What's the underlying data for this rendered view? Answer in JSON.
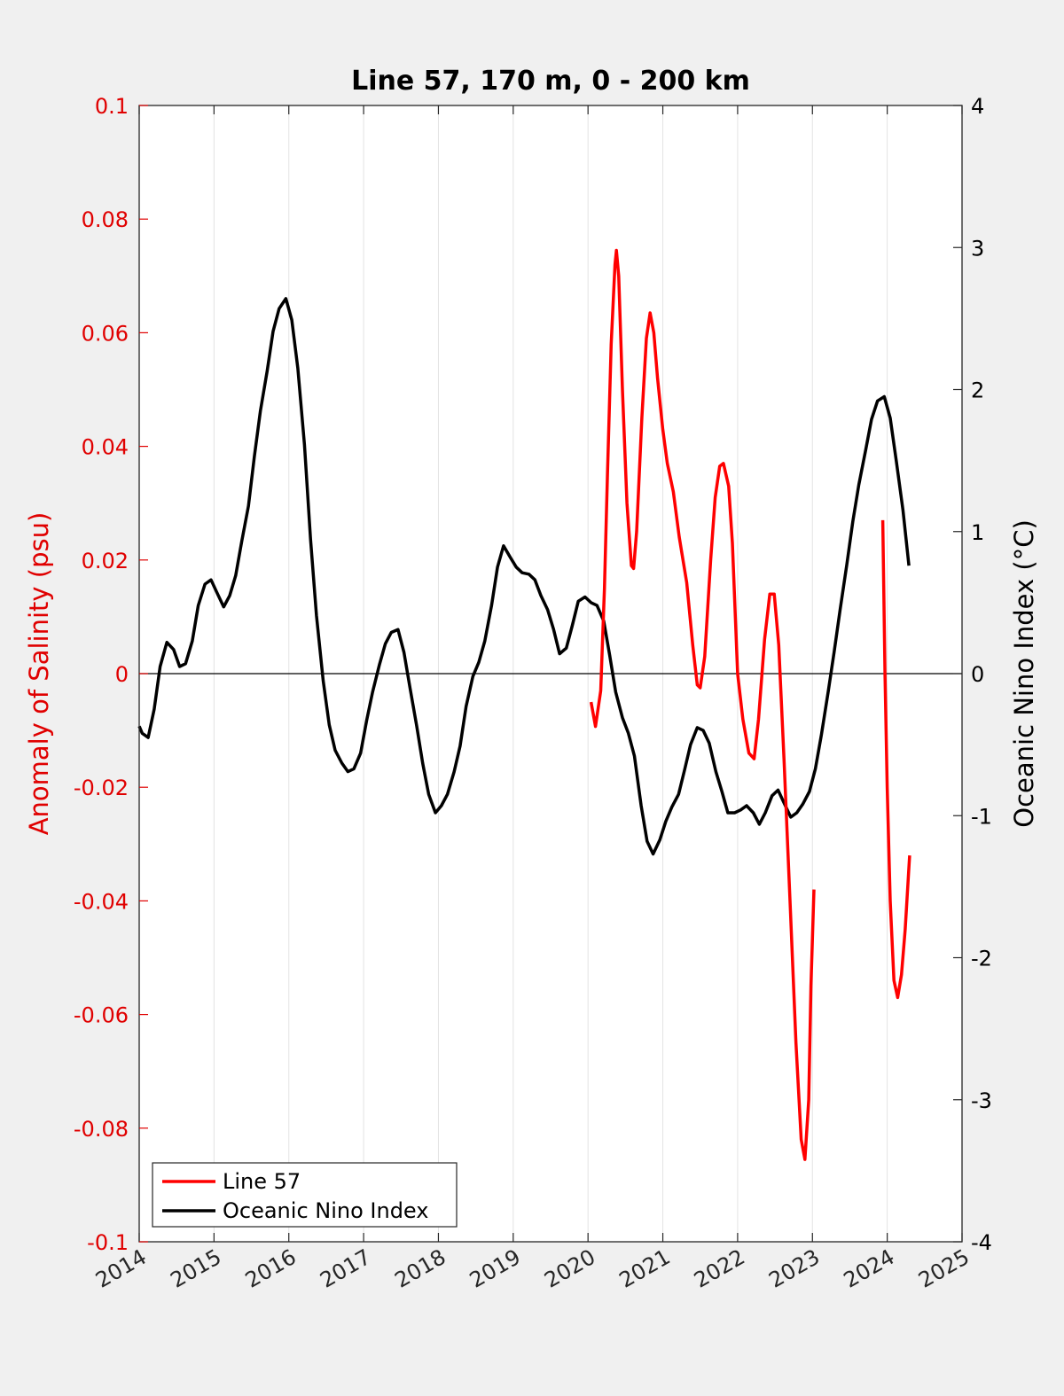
{
  "chart_data": {
    "type": "line",
    "title": "Line 57, 170 m, 0 - 200 km",
    "ylabel_left": "Anomaly of Salinity (psu)",
    "ylabel_right": "Oceanic Nino Index (°C)",
    "xlabel": "",
    "xlim": [
      2014,
      2025
    ],
    "ylim_left": [
      -0.1,
      0.1
    ],
    "ylim_right": [
      -4,
      4
    ],
    "x_ticks": [
      "2014",
      "2015",
      "2016",
      "2017",
      "2018",
      "2019",
      "2020",
      "2021",
      "2022",
      "2023",
      "2024",
      "2025"
    ],
    "y_ticks_left": [
      "0.1",
      "0.08",
      "0.06",
      "0.04",
      "0.02",
      "0",
      "-0.02",
      "-0.04",
      "-0.06",
      "-0.08",
      "-0.1"
    ],
    "y_ticks_right": [
      "4",
      "3",
      "2",
      "1",
      "0",
      "-1",
      "-2",
      "-3",
      "-4"
    ],
    "grid": "vertical",
    "zero_line": true,
    "legend_position": "bottom-left",
    "series": [
      {
        "name": "Line 57",
        "axis": "left",
        "color": "#ff0000",
        "segments": [
          [
            [
              2020.04,
              -0.005
            ],
            [
              2020.1,
              -0.0093
            ],
            [
              2020.17,
              -0.003
            ],
            [
              2020.22,
              0.015
            ],
            [
              2020.26,
              0.035
            ],
            [
              2020.31,
              0.058
            ],
            [
              2020.36,
              0.072
            ],
            [
              2020.38,
              0.0745
            ],
            [
              2020.41,
              0.07
            ],
            [
              2020.46,
              0.05
            ],
            [
              2020.52,
              0.03
            ],
            [
              2020.58,
              0.019
            ],
            [
              2020.61,
              0.0185
            ],
            [
              2020.65,
              0.025
            ],
            [
              2020.72,
              0.045
            ],
            [
              2020.78,
              0.059
            ],
            [
              2020.83,
              0.0635
            ],
            [
              2020.88,
              0.06
            ],
            [
              2020.93,
              0.052
            ],
            [
              2021.0,
              0.043
            ],
            [
              2021.06,
              0.037
            ],
            [
              2021.14,
              0.032
            ],
            [
              2021.22,
              0.024
            ],
            [
              2021.32,
              0.016
            ],
            [
              2021.4,
              0.005
            ],
            [
              2021.46,
              -0.002
            ],
            [
              2021.5,
              -0.0025
            ],
            [
              2021.56,
              0.003
            ],
            [
              2021.64,
              0.02
            ],
            [
              2021.7,
              0.031
            ],
            [
              2021.76,
              0.0365
            ],
            [
              2021.81,
              0.037
            ],
            [
              2021.88,
              0.033
            ],
            [
              2021.93,
              0.023
            ],
            [
              2022.0,
              0.0
            ],
            [
              2022.07,
              -0.008
            ],
            [
              2022.15,
              -0.014
            ],
            [
              2022.22,
              -0.015
            ],
            [
              2022.28,
              -0.008
            ],
            [
              2022.36,
              0.006
            ],
            [
              2022.43,
              0.014
            ],
            [
              2022.49,
              0.014
            ],
            [
              2022.55,
              0.005
            ],
            [
              2022.62,
              -0.015
            ],
            [
              2022.7,
              -0.04
            ],
            [
              2022.78,
              -0.065
            ],
            [
              2022.85,
              -0.082
            ],
            [
              2022.9,
              -0.0855
            ],
            [
              2022.95,
              -0.075
            ],
            [
              2022.98,
              -0.055
            ],
            [
              2023.02,
              -0.038
            ]
          ],
          [
            [
              2023.94,
              0.027
            ],
            [
              2023.97,
              0.0
            ],
            [
              2024.0,
              -0.02
            ],
            [
              2024.04,
              -0.04
            ],
            [
              2024.09,
              -0.054
            ],
            [
              2024.14,
              -0.057
            ],
            [
              2024.19,
              -0.053
            ],
            [
              2024.24,
              -0.045
            ],
            [
              2024.3,
              -0.032
            ]
          ]
        ]
      },
      {
        "name": "Oceanic Nino Index",
        "axis": "right",
        "color": "#000000",
        "segments": [
          [
            [
              2014.0,
              -0.37
            ],
            [
              2014.04,
              -0.42
            ],
            [
              2014.12,
              -0.45
            ],
            [
              2014.2,
              -0.25
            ],
            [
              2014.28,
              0.05
            ],
            [
              2014.37,
              0.22
            ],
            [
              2014.46,
              0.17
            ],
            [
              2014.54,
              0.05
            ],
            [
              2014.62,
              0.07
            ],
            [
              2014.71,
              0.23
            ],
            [
              2014.79,
              0.48
            ],
            [
              2014.88,
              0.63
            ],
            [
              2014.96,
              0.66
            ],
            [
              2015.04,
              0.57
            ],
            [
              2015.13,
              0.47
            ],
            [
              2015.21,
              0.55
            ],
            [
              2015.29,
              0.69
            ],
            [
              2015.37,
              0.93
            ],
            [
              2015.46,
              1.18
            ],
            [
              2015.54,
              1.53
            ],
            [
              2015.62,
              1.85
            ],
            [
              2015.71,
              2.13
            ],
            [
              2015.79,
              2.41
            ],
            [
              2015.87,
              2.57
            ],
            [
              2015.96,
              2.64
            ],
            [
              2016.04,
              2.49
            ],
            [
              2016.12,
              2.15
            ],
            [
              2016.21,
              1.61
            ],
            [
              2016.29,
              0.95
            ],
            [
              2016.37,
              0.41
            ],
            [
              2016.46,
              -0.05
            ],
            [
              2016.54,
              -0.36
            ],
            [
              2016.62,
              -0.54
            ],
            [
              2016.71,
              -0.63
            ],
            [
              2016.79,
              -0.69
            ],
            [
              2016.87,
              -0.67
            ],
            [
              2016.96,
              -0.56
            ],
            [
              2017.04,
              -0.33
            ],
            [
              2017.12,
              -0.13
            ],
            [
              2017.21,
              0.06
            ],
            [
              2017.29,
              0.21
            ],
            [
              2017.37,
              0.29
            ],
            [
              2017.46,
              0.31
            ],
            [
              2017.54,
              0.15
            ],
            [
              2017.62,
              -0.1
            ],
            [
              2017.71,
              -0.37
            ],
            [
              2017.79,
              -0.63
            ],
            [
              2017.87,
              -0.85
            ],
            [
              2017.96,
              -0.98
            ],
            [
              2018.04,
              -0.93
            ],
            [
              2018.12,
              -0.85
            ],
            [
              2018.21,
              -0.69
            ],
            [
              2018.29,
              -0.51
            ],
            [
              2018.37,
              -0.23
            ],
            [
              2018.46,
              -0.02
            ],
            [
              2018.54,
              0.08
            ],
            [
              2018.62,
              0.23
            ],
            [
              2018.71,
              0.48
            ],
            [
              2018.79,
              0.75
            ],
            [
              2018.87,
              0.9
            ],
            [
              2018.96,
              0.82
            ],
            [
              2019.04,
              0.75
            ],
            [
              2019.12,
              0.71
            ],
            [
              2019.21,
              0.7
            ],
            [
              2019.29,
              0.66
            ],
            [
              2019.37,
              0.55
            ],
            [
              2019.46,
              0.45
            ],
            [
              2019.54,
              0.31
            ],
            [
              2019.62,
              0.14
            ],
            [
              2019.71,
              0.18
            ],
            [
              2019.79,
              0.34
            ],
            [
              2019.87,
              0.51
            ],
            [
              2019.96,
              0.54
            ],
            [
              2020.04,
              0.5
            ],
            [
              2020.12,
              0.48
            ],
            [
              2020.21,
              0.37
            ],
            [
              2020.29,
              0.13
            ],
            [
              2020.37,
              -0.13
            ],
            [
              2020.46,
              -0.31
            ],
            [
              2020.54,
              -0.42
            ],
            [
              2020.62,
              -0.58
            ],
            [
              2020.71,
              -0.93
            ],
            [
              2020.79,
              -1.18
            ],
            [
              2020.87,
              -1.27
            ],
            [
              2020.96,
              -1.17
            ],
            [
              2021.04,
              -1.04
            ],
            [
              2021.12,
              -0.94
            ],
            [
              2021.21,
              -0.85
            ],
            [
              2021.29,
              -0.68
            ],
            [
              2021.37,
              -0.5
            ],
            [
              2021.46,
              -0.38
            ],
            [
              2021.54,
              -0.4
            ],
            [
              2021.62,
              -0.49
            ],
            [
              2021.71,
              -0.69
            ],
            [
              2021.79,
              -0.83
            ],
            [
              2021.87,
              -0.98
            ],
            [
              2021.96,
              -0.98
            ],
            [
              2022.04,
              -0.96
            ],
            [
              2022.12,
              -0.93
            ],
            [
              2022.21,
              -0.98
            ],
            [
              2022.29,
              -1.06
            ],
            [
              2022.37,
              -0.98
            ],
            [
              2022.46,
              -0.86
            ],
            [
              2022.54,
              -0.82
            ],
            [
              2022.62,
              -0.91
            ],
            [
              2022.71,
              -1.01
            ],
            [
              2022.79,
              -0.98
            ],
            [
              2022.87,
              -0.92
            ],
            [
              2022.96,
              -0.83
            ],
            [
              2023.04,
              -0.67
            ],
            [
              2023.12,
              -0.43
            ],
            [
              2023.21,
              -0.13
            ],
            [
              2023.29,
              0.15
            ],
            [
              2023.37,
              0.45
            ],
            [
              2023.46,
              0.77
            ],
            [
              2023.54,
              1.07
            ],
            [
              2023.62,
              1.33
            ],
            [
              2023.71,
              1.57
            ],
            [
              2023.79,
              1.79
            ],
            [
              2023.87,
              1.92
            ],
            [
              2023.96,
              1.95
            ],
            [
              2024.04,
              1.8
            ],
            [
              2024.12,
              1.5
            ],
            [
              2024.21,
              1.15
            ],
            [
              2024.29,
              0.76
            ]
          ]
        ]
      }
    ]
  }
}
